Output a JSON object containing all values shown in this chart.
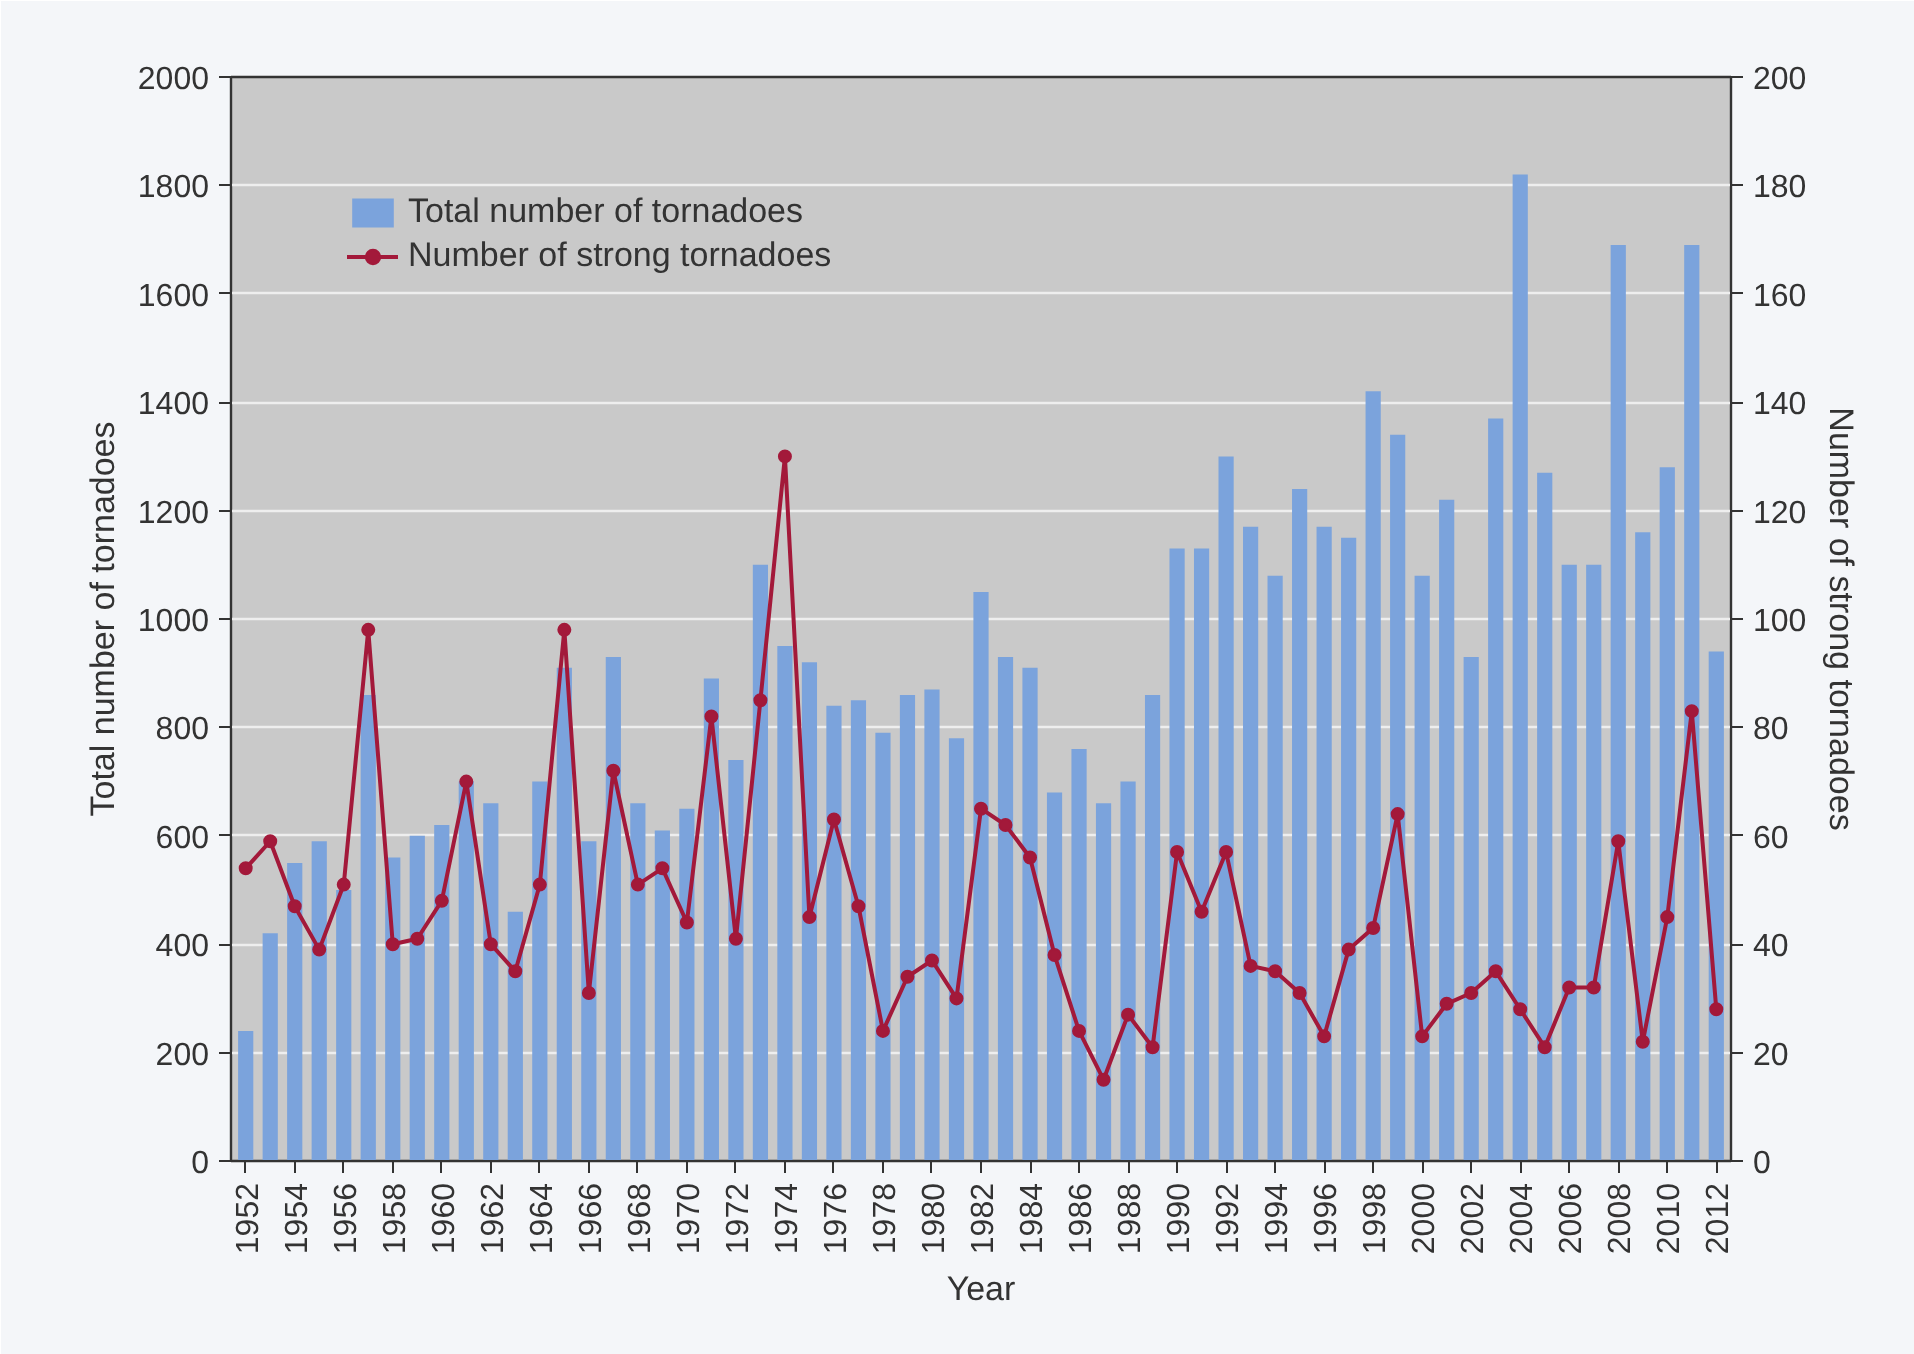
{
  "chart_data": {
    "type": "bar",
    "xlabel": "Year",
    "ylabel": "Total number of tornadoes",
    "y2label": "Number of strong tornadoes",
    "x": [
      1952,
      1953,
      1954,
      1955,
      1956,
      1957,
      1958,
      1959,
      1960,
      1961,
      1962,
      1963,
      1964,
      1965,
      1966,
      1967,
      1968,
      1969,
      1970,
      1971,
      1972,
      1973,
      1974,
      1975,
      1976,
      1977,
      1978,
      1979,
      1980,
      1981,
      1982,
      1983,
      1984,
      1985,
      1986,
      1987,
      1988,
      1989,
      1990,
      1991,
      1992,
      1993,
      1994,
      1995,
      1996,
      1997,
      1998,
      1999,
      2000,
      2001,
      2002,
      2003,
      2004,
      2005,
      2006,
      2007,
      2008,
      2009,
      2010,
      2011,
      2012
    ],
    "xlim": [
      1951.4,
      2012.6
    ],
    "xticks": [
      1952,
      1954,
      1956,
      1958,
      1960,
      1962,
      1964,
      1966,
      1968,
      1970,
      1972,
      1974,
      1976,
      1978,
      1980,
      1982,
      1984,
      1986,
      1988,
      1990,
      1992,
      1994,
      1996,
      1998,
      2000,
      2002,
      2004,
      2006,
      2008,
      2010,
      2012
    ],
    "ylim": [
      0,
      2000
    ],
    "yticks": [
      0,
      200,
      400,
      600,
      800,
      1000,
      1200,
      1400,
      1600,
      1800,
      2000
    ],
    "y2lim": [
      0,
      200
    ],
    "y2ticks": [
      0,
      20,
      40,
      60,
      80,
      100,
      120,
      140,
      160,
      180,
      200
    ],
    "grid": "y",
    "legend": "top left",
    "series": [
      {
        "name": "Total number of tornadoes",
        "color": "#7ba3dc",
        "values": [
          240,
          420,
          550,
          590,
          500,
          860,
          560,
          600,
          620,
          700,
          660,
          460,
          700,
          910,
          590,
          930,
          660,
          610,
          650,
          890,
          740,
          1100,
          950,
          920,
          840,
          850,
          790,
          860,
          870,
          780,
          1050,
          930,
          910,
          680,
          760,
          660,
          700,
          860,
          1130,
          1130,
          1300,
          1170,
          1080,
          1240,
          1170,
          1150,
          1420,
          1340,
          1080,
          1220,
          930,
          1370,
          1820,
          1270,
          1100,
          1100,
          1690,
          1160,
          1280,
          1690,
          940
        ]
      },
      {
        "name": "Number of strong tornadoes",
        "type": "line",
        "axis": "y2",
        "color": "#a3193a",
        "marker": "circle",
        "values": [
          54,
          59,
          47,
          39,
          51,
          98,
          40,
          41,
          48,
          70,
          40,
          35,
          51,
          98,
          31,
          72,
          51,
          54,
          44,
          82,
          41,
          85,
          130,
          45,
          63,
          47,
          24,
          34,
          37,
          30,
          65,
          62,
          56,
          38,
          24,
          15,
          27,
          21,
          57,
          46,
          57,
          36,
          35,
          31,
          23,
          39,
          43,
          64,
          23,
          29,
          31,
          35,
          28,
          21,
          32,
          32,
          59,
          22,
          45,
          83,
          28
        ]
      }
    ]
  }
}
